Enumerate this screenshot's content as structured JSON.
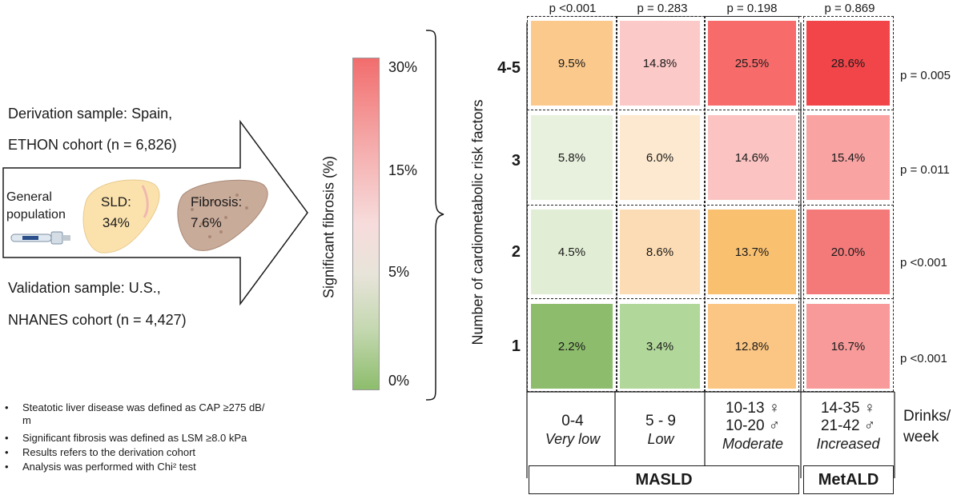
{
  "derivation": {
    "line1": "Derivation sample: Spain,",
    "line2": "ETHON cohort (n = 6,826)"
  },
  "validation": {
    "line1": "Validation sample: U.S.,",
    "line2": "NHANES cohort (n = 4,427)"
  },
  "arrow_content": {
    "general_population_line1": "General",
    "general_population_line2": "population",
    "sld_label": "SLD:",
    "sld_value": "34%",
    "fibrosis_label": "Fibrosis:",
    "fibrosis_value": "7.6%"
  },
  "bullets": [
    "Steatotic liver disease was defined as CAP   ≥275 dB/",
    "m",
    "Significant fibrosis was defined as LSM  ≥8.0 kPa",
    "Results refers to the derivation cohort",
    "Analysis was performed with Chi² test"
  ],
  "colorbar": {
    "title": "Significant fibrosis (%)",
    "ticks": [
      "30%",
      "15%",
      "5%",
      "0%"
    ],
    "colors": {
      "top": "#f26d6d",
      "mid": "#f7dcdc",
      "low": "#e6e6d8",
      "bottom": "#8dbd6c"
    }
  },
  "chart_data": {
    "type": "heatmap",
    "ylabel": "Number of cardiometabolic risk factors",
    "rows": [
      "4-5",
      "3",
      "2",
      "1"
    ],
    "columns": [
      {
        "range": "0-4",
        "label": "Very low"
      },
      {
        "range": "5 - 9",
        "label": "Low"
      },
      {
        "range_f": "10-13 ♀",
        "range_m": "10-20 ♂",
        "label": "Moderate"
      },
      {
        "range_f": "14-35 ♀",
        "range_m": "21-42 ♂",
        "label": "Increased"
      }
    ],
    "values": [
      [
        "9.5%",
        "14.8%",
        "25.5%",
        "28.6%"
      ],
      [
        "5.8%",
        "6.0%",
        "14.6%",
        "15.4%"
      ],
      [
        "4.5%",
        "8.6%",
        "13.7%",
        "20.0%"
      ],
      [
        "2.2%",
        "3.4%",
        "12.8%",
        "16.7%"
      ]
    ],
    "cell_colors": [
      [
        "#fbc98c",
        "#fbc9c8",
        "#f76b6b",
        "#f2454a"
      ],
      [
        "#e8f1de",
        "#fde9cf",
        "#fbc4c3",
        "#f9a3a3"
      ],
      [
        "#e1edd4",
        "#fcdcb4",
        "#f9c070",
        "#f47a7a"
      ],
      [
        "#8dbd6c",
        "#b1d79a",
        "#fbc683",
        "#f89a9a"
      ]
    ],
    "column_pvalues": [
      "p <0.001",
      "p = 0.283",
      "p = 0.198",
      "p = 0.869"
    ],
    "row_pvalues": [
      "p = 0.005",
      "p = 0.011",
      "p <0.001",
      "p <0.001"
    ],
    "x_axis_unit": "Drinks/\nweek",
    "groups": [
      "MASLD",
      "MetALD"
    ]
  }
}
